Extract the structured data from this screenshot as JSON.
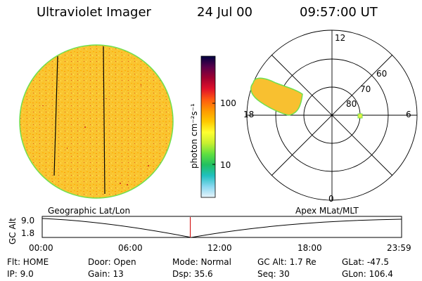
{
  "header": {
    "title": "Ultraviolet Imager",
    "date": "24 Jul 00",
    "time": "09:57:00 UT"
  },
  "colorbar": {
    "unit_label": "photon cm⁻²s⁻¹",
    "ticks": [
      "100",
      "10"
    ],
    "stops": [
      "#000040",
      "#5a004a",
      "#a00030",
      "#e0102a",
      "#ff5a10",
      "#ff9800",
      "#ffc800",
      "#ffff30",
      "#c8f030",
      "#60e040",
      "#20c060",
      "#20c0c0",
      "#8ad8f0",
      "#e8f4fb"
    ]
  },
  "polar": {
    "mlt_labels": [
      "12",
      "18",
      "6",
      "0"
    ],
    "lat_labels": [
      "60",
      "70",
      "80"
    ]
  },
  "timeline": {
    "left_title": "Geographic Lat/Lon",
    "right_title": "Apex MLat/MLT",
    "axis_label": "GC Alt",
    "y_labels": [
      "9.0",
      "1.8"
    ],
    "x_labels": [
      "00:00",
      "06:00",
      "12:00",
      "18:00",
      "23:59"
    ],
    "current_time_fraction": 0.41
  },
  "info": {
    "row1": [
      "Flt: HOME",
      "Door: Open",
      "Mode: Normal",
      "GC Alt: 1.7 Re",
      "GLat: -47.5"
    ],
    "row2": [
      "IP: 9.0",
      "Gain: 13",
      "Dsp: 35.6",
      "Seq: 30",
      "GLon: 106.4"
    ]
  },
  "colors": {
    "disk_fill": "#f8c030",
    "disk_edge": "#70e050",
    "marker": "#d00000"
  }
}
